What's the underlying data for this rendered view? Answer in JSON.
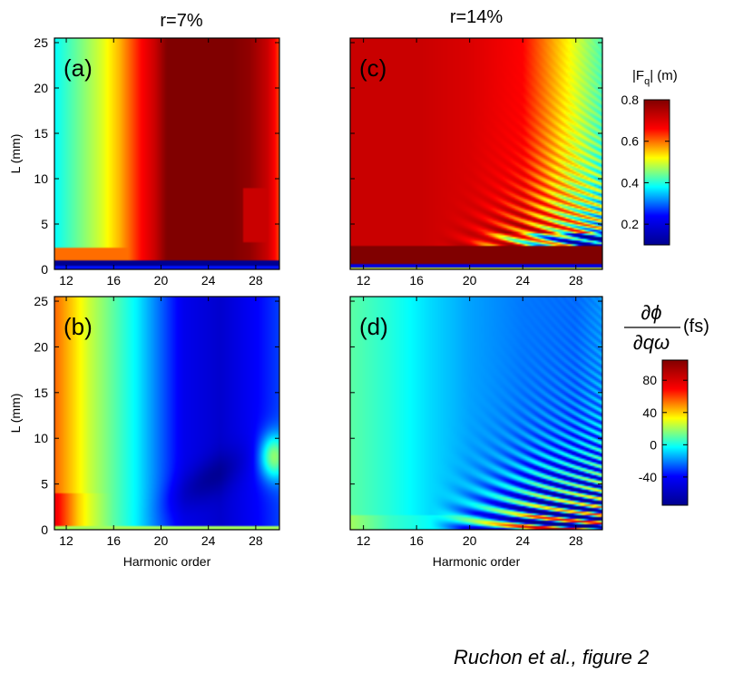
{
  "figure": {
    "caption": "Ruchon et al., figure 2",
    "column_titles": [
      "r=7%",
      "r=14%"
    ]
  },
  "colorbars": [
    {
      "label_main": "|F",
      "label_sub": "q",
      "label_tail": "| (m)",
      "ticks": [
        0.2,
        0.4,
        0.6,
        0.8
      ],
      "range": [
        0.1,
        0.8
      ]
    },
    {
      "label_num": "∂ϕ",
      "label_den": "∂qω",
      "label_unit": "(fs)",
      "ticks": [
        -40,
        0,
        40,
        80
      ],
      "range": [
        -75,
        105
      ]
    }
  ],
  "colormap": [
    "#00008f",
    "#0000ff",
    "#00ffff",
    "#ffff00",
    "#ff0000",
    "#800000"
  ],
  "chart_data": [
    {
      "type": "heatmap",
      "panel_label": "(a)",
      "xlabel": "",
      "ylabel": "L (mm)",
      "xlim": [
        11,
        30
      ],
      "ylim": [
        0,
        25.5
      ],
      "xticks": [
        12,
        16,
        20,
        24,
        28
      ],
      "yticks": [
        0,
        5,
        10,
        15,
        20,
        25
      ],
      "value_range": [
        0.1,
        0.8
      ],
      "samples_q": [
        11,
        14,
        17,
        20,
        24,
        28,
        30
      ],
      "samples_L5mm": [
        0.45,
        0.5,
        0.65,
        0.8,
        0.8,
        0.8,
        0.6
      ],
      "samples_L20mm": [
        0.45,
        0.5,
        0.65,
        0.8,
        0.8,
        0.8,
        0.75
      ]
    },
    {
      "type": "heatmap",
      "panel_label": "(b)",
      "xlabel": "Harmonic order",
      "ylabel": "L (mm)",
      "xlim": [
        11,
        30
      ],
      "ylim": [
        0,
        25.5
      ],
      "xticks": [
        12,
        16,
        20,
        24,
        28
      ],
      "yticks": [
        0,
        5,
        10,
        15,
        20,
        25
      ],
      "value_range": [
        -75,
        105
      ],
      "samples_q": [
        11,
        14,
        17,
        20,
        24,
        28,
        30
      ],
      "samples_L20mm": [
        40,
        20,
        0,
        -30,
        -55,
        -40,
        -20
      ],
      "samples_L5mm": [
        55,
        20,
        0,
        -40,
        -70,
        -45,
        0
      ]
    },
    {
      "type": "heatmap",
      "panel_label": "(c)",
      "xlabel": "",
      "ylabel": "",
      "xlim": [
        11,
        30
      ],
      "ylim": [
        0,
        25.5
      ],
      "xticks": [
        12,
        16,
        20,
        24,
        28
      ],
      "yticks": [
        0,
        5,
        10,
        15,
        20,
        25
      ],
      "value_range": [
        0.1,
        0.8
      ],
      "samples_q": [
        11,
        14,
        17,
        20,
        24,
        28,
        30
      ],
      "samples_L20mm": [
        0.72,
        0.72,
        0.7,
        0.68,
        0.62,
        0.5,
        0.42
      ],
      "samples_L5mm": [
        0.65,
        0.65,
        0.62,
        0.58,
        0.4,
        0.3,
        0.3
      ]
    },
    {
      "type": "heatmap",
      "panel_label": "(d)",
      "xlabel": "Harmonic order",
      "ylabel": "",
      "xlim": [
        11,
        30
      ],
      "ylim": [
        0,
        25.5
      ],
      "xticks": [
        12,
        16,
        20,
        24,
        28
      ],
      "yticks": [
        0,
        5,
        10,
        15,
        20,
        25
      ],
      "value_range": [
        -75,
        105
      ],
      "samples_q": [
        11,
        14,
        17,
        20,
        24,
        28,
        30
      ],
      "samples_L20mm": [
        10,
        0,
        -10,
        -20,
        -25,
        -25,
        -15
      ],
      "samples_L5mm": [
        10,
        0,
        -10,
        -20,
        20,
        60,
        90
      ]
    }
  ]
}
